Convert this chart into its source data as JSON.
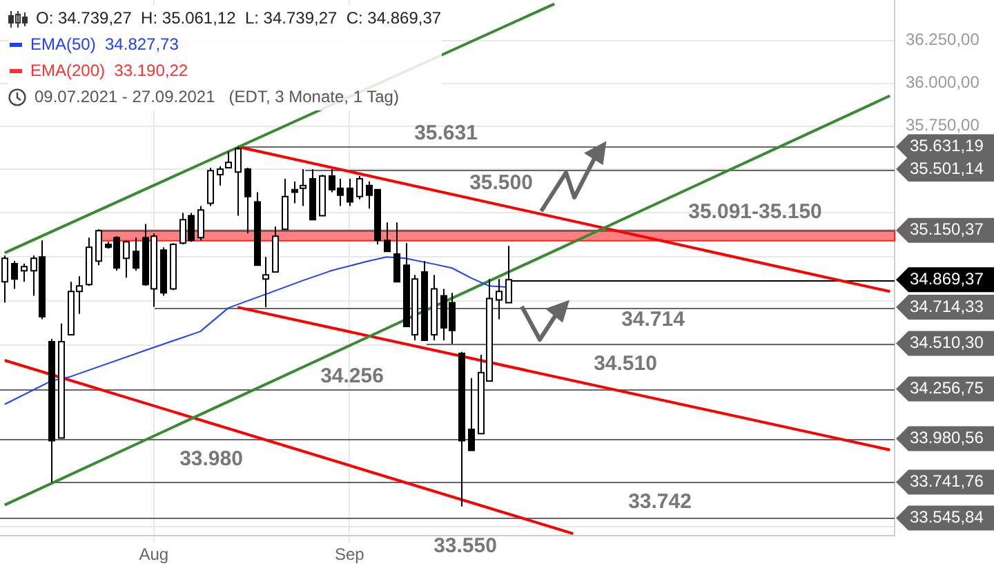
{
  "chart_data": {
    "type": "candlestick",
    "title": "O: 34.739,27  H: 35.061,12  L: 34.739,27  C: 34.869,37",
    "subtitle": "09.07.2021 - 27.09.2021   (EDT, 3 Monate, 1 Tag)",
    "categories": [
      null,
      null,
      null,
      null,
      null,
      null,
      null,
      null,
      null,
      null,
      null,
      null,
      null,
      null,
      null,
      null,
      "Aug",
      null,
      null,
      null,
      null,
      null,
      null,
      null,
      null,
      null,
      null,
      null,
      null,
      null,
      null,
      null,
      null,
      null,
      null,
      null,
      null,
      "Sep",
      null,
      null,
      null,
      null,
      null,
      null,
      null,
      null,
      null,
      null,
      null,
      null,
      null,
      null,
      null,
      null,
      null,
      null,
      null,
      null,
      null,
      null,
      null,
      null,
      null,
      null,
      null,
      null,
      null,
      null,
      null,
      null,
      null,
      null,
      null,
      null,
      null,
      null,
      null,
      null,
      null,
      null,
      null,
      null,
      null,
      null,
      null,
      null,
      null,
      null,
      null,
      null,
      null,
      null,
      null,
      null,
      null,
      null
    ],
    "ohlc": [
      [
        34858,
        35007,
        34740,
        34991
      ],
      [
        34960,
        34975,
        34818,
        34873
      ],
      [
        34920,
        34960,
        34858,
        34944
      ],
      [
        34920,
        35007,
        34779,
        34991
      ],
      [
        34999,
        35093,
        34646,
        34661
      ],
      [
        34520,
        34536,
        33741,
        33970
      ],
      [
        33985,
        34622,
        33985,
        34520
      ],
      [
        34559,
        34858,
        34559,
        34803
      ],
      [
        34803,
        34889,
        34677,
        34834
      ],
      [
        34842,
        35109,
        34834,
        35054
      ],
      [
        34975,
        35156,
        34952,
        35148
      ],
      [
        35070,
        35085,
        35046,
        35054
      ],
      [
        35109,
        35117,
        34920,
        34936
      ],
      [
        34991,
        35093,
        34881,
        35085
      ],
      [
        35030,
        35109,
        34920,
        34936
      ],
      [
        35109,
        35187,
        34834,
        34842
      ],
      [
        34818,
        35132,
        34716,
        35117
      ],
      [
        35038,
        35054,
        34779,
        34795
      ],
      [
        34818,
        35077,
        34810,
        35070
      ],
      [
        35077,
        35250,
        35070,
        35211
      ],
      [
        35234,
        35250,
        35085,
        35093
      ],
      [
        35109,
        35289,
        35093,
        35266
      ],
      [
        35305,
        35509,
        35289,
        35493
      ],
      [
        35470,
        35517,
        35407,
        35501
      ],
      [
        35509,
        35603,
        35509,
        35540
      ],
      [
        35485,
        35631,
        35234,
        35619
      ],
      [
        35501,
        35509,
        35132,
        35344
      ],
      [
        35313,
        35368,
        34952,
        34952
      ],
      [
        34873,
        34999,
        34714,
        34897
      ],
      [
        34913,
        35172,
        34913,
        35117
      ],
      [
        35156,
        35446,
        35156,
        35344
      ],
      [
        35383,
        35430,
        35305,
        35368
      ],
      [
        35391,
        35501,
        35289,
        35407
      ],
      [
        35446,
        35501,
        35211,
        35211
      ],
      [
        35234,
        35470,
        35234,
        35462
      ],
      [
        35462,
        35501,
        35368,
        35383
      ],
      [
        35391,
        35446,
        35289,
        35352
      ],
      [
        35391,
        35446,
        35289,
        35313
      ],
      [
        35344,
        35462,
        35328,
        35446
      ],
      [
        35407,
        35430,
        35274,
        35352
      ],
      [
        35383,
        35383,
        35070,
        35093
      ],
      [
        35093,
        35195,
        35030,
        35030
      ],
      [
        35015,
        35195,
        34858,
        34858
      ],
      [
        34952,
        35077,
        34606,
        34606
      ],
      [
        34559,
        34897,
        34528,
        34873
      ],
      [
        34913,
        34975,
        34528,
        34528
      ],
      [
        34559,
        34897,
        34528,
        34818
      ],
      [
        34779,
        34818,
        34528,
        34598
      ],
      [
        34740,
        34795,
        34509,
        34583
      ],
      [
        34455,
        34463,
        33609,
        33970
      ],
      [
        34032,
        34317,
        33916,
        33916
      ],
      [
        34009,
        34447,
        34009,
        34348
      ],
      [
        34301,
        34873,
        34301,
        34763
      ],
      [
        34755,
        34873,
        34646,
        34803
      ],
      [
        34739.27,
        35061.12,
        34739.27,
        34869.37
      ],
      null,
      null,
      null,
      null,
      null,
      null,
      null,
      null,
      null,
      null,
      null,
      null,
      null,
      null,
      null,
      null,
      null,
      null,
      null,
      null,
      null,
      null,
      null,
      null,
      null,
      null,
      null,
      null,
      null,
      null,
      null,
      null,
      null,
      null,
      null,
      null,
      null,
      null,
      null,
      null,
      null
    ],
    "series": [
      {
        "type": "line",
        "name": "EMA(50)  34.827,73",
        "color": "#2040ff",
        "values": [
          34171,
          null,
          null,
          null,
          null,
          34301,
          null,
          34324,
          null,
          null,
          null,
          null,
          null,
          null,
          null,
          34470,
          null,
          null,
          null,
          null,
          null,
          34578,
          null,
          null,
          34710,
          null,
          34749,
          null,
          34787,
          null,
          null,
          null,
          34865,
          null,
          null,
          34920,
          null,
          null,
          null,
          34975,
          null,
          34999,
          null,
          34991,
          null,
          null,
          34959,
          null,
          34936,
          null,
          34881,
          null,
          34834,
          null,
          34827.73,
          null,
          null,
          null,
          null,
          null,
          null,
          null,
          null,
          null,
          null,
          null,
          null,
          null,
          null,
          null,
          null,
          null,
          null,
          null,
          null,
          null,
          null,
          null,
          null,
          null,
          null,
          null,
          null,
          null,
          null,
          null,
          null,
          null,
          null,
          null,
          null,
          null,
          null,
          null,
          null,
          null
        ]
      },
      {
        "type": "line",
        "name": "EMA(200)  33.190,22",
        "color": "#ff3030",
        "values": [
          null,
          null,
          null,
          null,
          null,
          null,
          null,
          null,
          null,
          null,
          null,
          null,
          null,
          null,
          null,
          null,
          null,
          null,
          null,
          null,
          null,
          null,
          null,
          null,
          null,
          null,
          null,
          null,
          null,
          null,
          null,
          null,
          null,
          null,
          null,
          null,
          null,
          null,
          null,
          null,
          null,
          null,
          null,
          null,
          null,
          null,
          null,
          null,
          null,
          null,
          null,
          null,
          null,
          null,
          null,
          null,
          null,
          null,
          null,
          null,
          null,
          null,
          null,
          null,
          null,
          null,
          null,
          null,
          null,
          null,
          null,
          null,
          null,
          null,
          null,
          null,
          null,
          null,
          null,
          null,
          null,
          null,
          null,
          null,
          null,
          null,
          null,
          null,
          null,
          null,
          null,
          null,
          null,
          null,
          null,
          null
        ]
      },
      {
        "type": "line",
        "color": "#3a8a34",
        "values": [
          35022,
          null,
          null,
          null,
          null,
          null,
          null,
          null,
          null,
          null,
          null,
          null,
          null,
          null,
          null,
          null,
          null,
          null,
          null,
          null,
          null,
          null,
          null,
          null,
          null,
          null,
          null,
          null,
          null,
          null,
          null,
          null,
          null,
          null,
          null,
          null,
          null,
          null,
          null,
          null,
          null,
          null,
          null,
          null,
          null,
          null,
          null,
          null,
          null,
          null,
          null,
          null,
          null,
          null,
          null,
          null,
          null,
          null,
          null,
          36467,
          null,
          null,
          null,
          null,
          null,
          null,
          null,
          null,
          null,
          null,
          null,
          null,
          null,
          null,
          null,
          null,
          null,
          null,
          null,
          null,
          null,
          null,
          null,
          null,
          null,
          null,
          null,
          null,
          null,
          null,
          null,
          null,
          null,
          null,
          null,
          null
        ]
      },
      {
        "type": "line",
        "color": "#3a8a34",
        "values": [
          33617,
          null,
          null,
          null,
          null,
          null,
          null,
          null,
          null,
          null,
          null,
          null,
          null,
          null,
          null,
          null,
          null,
          null,
          null,
          null,
          null,
          null,
          null,
          null,
          null,
          null,
          null,
          null,
          null,
          null,
          null,
          null,
          null,
          null,
          null,
          null,
          null,
          null,
          null,
          null,
          null,
          null,
          null,
          null,
          null,
          null,
          null,
          null,
          null,
          null,
          null,
          null,
          null,
          null,
          null,
          null,
          null,
          null,
          null,
          null,
          null,
          null,
          null,
          null,
          null,
          null,
          null,
          null,
          null,
          null,
          null,
          null,
          null,
          null,
          null,
          null,
          null,
          null,
          null,
          null,
          null,
          null,
          null,
          null,
          null,
          null,
          null,
          null,
          null,
          null,
          null,
          null,
          null,
          null,
          null,
          35927
        ]
      },
      {
        "type": "line",
        "color": "#ff0000",
        "values": [
          null,
          null,
          null,
          null,
          null,
          null,
          null,
          null,
          null,
          null,
          null,
          null,
          null,
          null,
          null,
          null,
          null,
          null,
          null,
          null,
          null,
          null,
          null,
          null,
          null,
          35631,
          null,
          null,
          null,
          null,
          null,
          null,
          null,
          null,
          null,
          null,
          null,
          null,
          null,
          null,
          null,
          null,
          null,
          null,
          null,
          null,
          null,
          null,
          null,
          null,
          null,
          null,
          null,
          null,
          null,
          null,
          null,
          null,
          null,
          null,
          null,
          null,
          null,
          null,
          null,
          null,
          null,
          null,
          null,
          null,
          null,
          null,
          null,
          null,
          null,
          null,
          null,
          null,
          null,
          null,
          null,
          null,
          null,
          null,
          null,
          null,
          null,
          null,
          null,
          null,
          null,
          null,
          null,
          null,
          null,
          34803
        ]
      },
      {
        "type": "line",
        "color": "#ff0000",
        "values": [
          null,
          null,
          null,
          null,
          null,
          null,
          null,
          null,
          null,
          null,
          null,
          null,
          null,
          null,
          null,
          null,
          null,
          null,
          null,
          null,
          null,
          null,
          null,
          null,
          null,
          34714,
          null,
          null,
          null,
          null,
          null,
          null,
          null,
          null,
          null,
          null,
          null,
          null,
          null,
          null,
          null,
          null,
          null,
          null,
          null,
          null,
          null,
          null,
          null,
          null,
          null,
          null,
          null,
          null,
          null,
          null,
          null,
          null,
          null,
          null,
          null,
          null,
          null,
          null,
          null,
          null,
          null,
          null,
          null,
          null,
          null,
          null,
          null,
          null,
          null,
          null,
          null,
          null,
          null,
          null,
          null,
          null,
          null,
          null,
          null,
          null,
          null,
          null,
          null,
          null,
          null,
          null,
          null,
          null,
          null,
          33919
        ]
      },
      {
        "type": "line",
        "color": "#ff0000",
        "values": [
          34416,
          null,
          null,
          null,
          null,
          null,
          null,
          null,
          null,
          null,
          null,
          null,
          null,
          null,
          null,
          null,
          null,
          null,
          null,
          null,
          null,
          null,
          null,
          null,
          null,
          null,
          null,
          null,
          null,
          null,
          null,
          null,
          null,
          null,
          null,
          null,
          null,
          null,
          null,
          null,
          null,
          null,
          null,
          null,
          null,
          null,
          null,
          null,
          null,
          null,
          null,
          null,
          null,
          null,
          null,
          null,
          null,
          null,
          null,
          null,
          null,
          33461,
          null,
          null,
          null,
          null,
          null,
          null,
          null,
          null,
          null,
          null,
          null,
          null,
          null,
          null,
          null,
          null,
          null,
          null,
          null,
          null,
          null,
          null,
          null,
          null,
          null,
          null,
          null,
          null,
          null,
          null,
          null,
          null,
          null,
          null
        ]
      }
    ],
    "ylim": [
      33450,
      36490
    ],
    "yticks": [
      {
        "value": 33500,
        "label": null
      },
      {
        "value": 34500,
        "label": null
      },
      {
        "value": 34750,
        "label": null
      },
      {
        "value": 35000,
        "label": null
      },
      {
        "value": 35250,
        "label": null
      },
      {
        "value": 35500,
        "label": null
      },
      {
        "value": 35750,
        "label": "35.750,00"
      },
      {
        "value": 36000,
        "label": "36.000,00"
      },
      {
        "value": 36250,
        "label": "36.250,00"
      }
    ],
    "log": true,
    "grid": true,
    "legend": "top left",
    "ref_lines": [
      {
        "axis": "y",
        "value": 35631.19,
        "label": "35.631,19",
        "color": "#666666"
      },
      {
        "axis": "y",
        "value": 35501.14,
        "label": "35.501,14",
        "color": "#666666"
      },
      {
        "axis": "y",
        "value": 35150.37,
        "label": "35.150,37",
        "color": "#666666"
      },
      {
        "axis": "y",
        "value": 34869.37,
        "label": "34.869,37",
        "color": "#000000"
      },
      {
        "axis": "y",
        "value": 34714.33,
        "label": "34.714,33",
        "color": "#666666"
      },
      {
        "axis": "y",
        "value": 34510.3,
        "label": "34.510,30",
        "color": "#666666"
      },
      {
        "axis": "y",
        "value": 34256.75,
        "label": "34.256,75",
        "color": "#666666"
      },
      {
        "axis": "y",
        "value": 33980.56,
        "label": "33.980,56",
        "color": "#666666"
      },
      {
        "axis": "y",
        "value": 33741.76,
        "label": "33.741,76",
        "color": "#666666"
      },
      {
        "axis": "y",
        "value": 33545.84,
        "label": "33.545,84",
        "color": "#666666"
      }
    ],
    "bands": [
      {
        "axis": "y",
        "from": 35091,
        "to": 35150,
        "label": "35.091-35.150",
        "color": "#ff8080"
      }
    ],
    "annotations": [
      "35.631",
      "35.500",
      "34.714",
      "34.510",
      "34.256",
      "33.980",
      "33.742",
      "33.550"
    ]
  }
}
